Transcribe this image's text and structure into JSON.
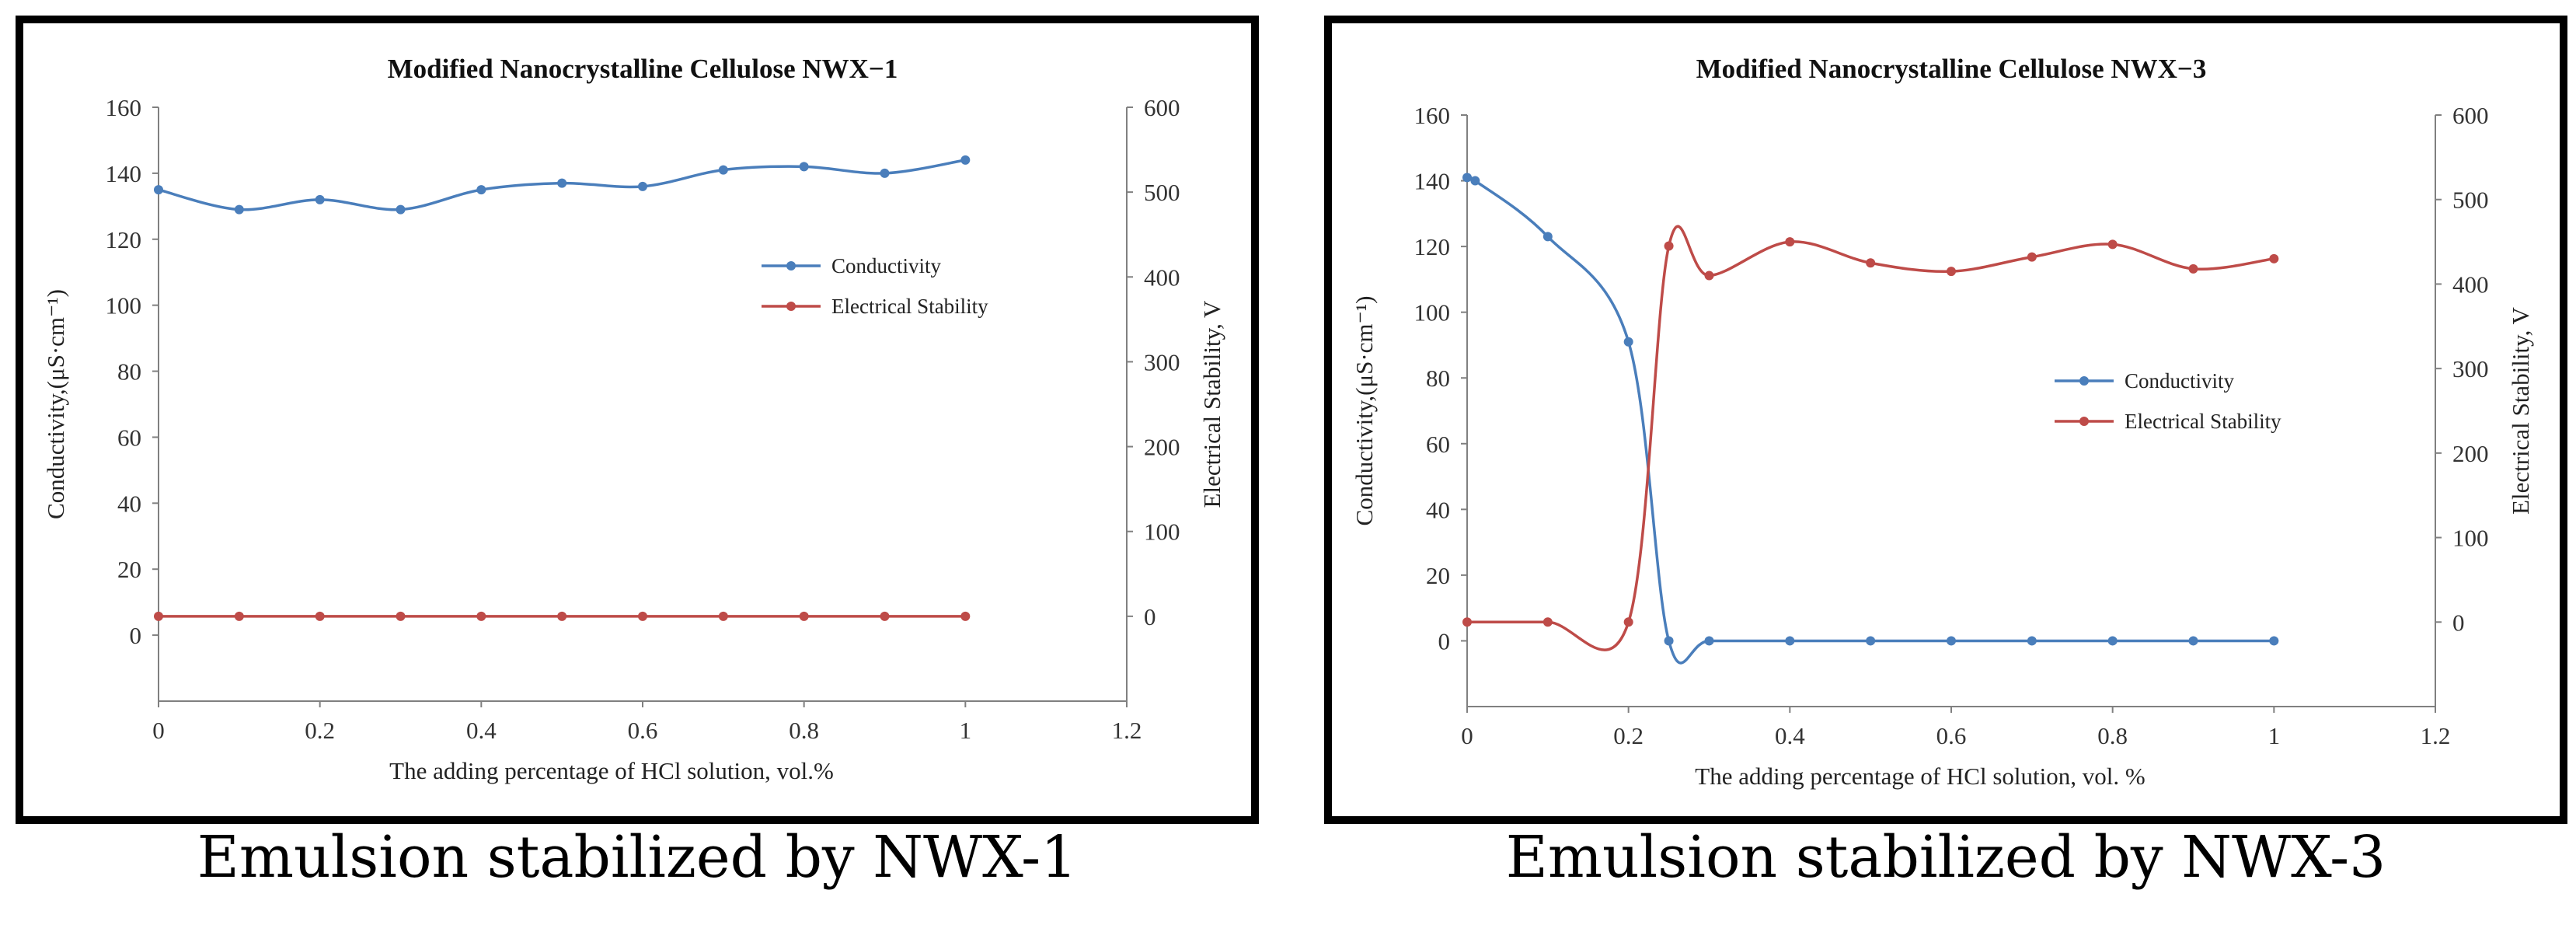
{
  "colors": {
    "conductivity": "#4a7ebb",
    "electrical_stability": "#be4b48",
    "axis": "#808080",
    "frame": "#000000"
  },
  "captions": [
    "Emulsion stabilized by NWX-1",
    "Emulsion stabilized by NWX-3"
  ],
  "chart_data": [
    {
      "type": "line",
      "title": "Modified Nanocrystalline Cellulose NWX−1",
      "xlabel": "The adding percentage of HCl solution,  vol.%",
      "ylabel": "Conductivity,(μS·cm⁻¹)",
      "y2label": "Electrical Stability, V",
      "xlim": [
        0,
        1.2
      ],
      "ylim": [
        -20,
        160
      ],
      "y2lim": [
        -100,
        600
      ],
      "x_ticks": [
        "0",
        "0.2",
        "0.4",
        "0.6",
        "0.8",
        "1",
        "1.2"
      ],
      "y_ticks": [
        "0",
        "20",
        "40",
        "60",
        "80",
        "100",
        "120",
        "140",
        "160"
      ],
      "y2_ticks": [
        "0",
        "100",
        "200",
        "300",
        "400",
        "500",
        "600"
      ],
      "legend_position": "right",
      "grid": false,
      "series": [
        {
          "name": "Conductivity",
          "axis": "left",
          "color_key": "conductivity",
          "x": [
            0,
            0.1,
            0.2,
            0.3,
            0.4,
            0.5,
            0.6,
            0.7,
            0.8,
            0.9,
            1.0
          ],
          "y": [
            135,
            129,
            132,
            129,
            135,
            137,
            136,
            141,
            142,
            140,
            144
          ]
        },
        {
          "name": "Electrical Stability",
          "axis": "right",
          "color_key": "electrical_stability",
          "x": [
            0,
            0.1,
            0.2,
            0.3,
            0.4,
            0.5,
            0.6,
            0.7,
            0.8,
            0.9,
            1.0
          ],
          "y": [
            0,
            0,
            0,
            0,
            0,
            0,
            0,
            0,
            0,
            0,
            0
          ]
        }
      ]
    },
    {
      "type": "line",
      "title": "Modified Nanocrystalline Cellulose NWX−3",
      "xlabel": "The adding percentage of HCl solution, vol. %",
      "ylabel": "Conductivity,(μS·cm⁻¹)",
      "y2label": "Electrical Stability, V",
      "xlim": [
        0,
        1.2
      ],
      "ylim": [
        -20,
        160
      ],
      "y2lim": [
        -100,
        600
      ],
      "x_ticks": [
        "0",
        "0.2",
        "0.4",
        "0.6",
        "0.8",
        "1",
        "1.2"
      ],
      "y_ticks": [
        "0",
        "20",
        "40",
        "60",
        "80",
        "100",
        "120",
        "140",
        "160"
      ],
      "y2_ticks": [
        "0",
        "100",
        "200",
        "300",
        "400",
        "500",
        "600"
      ],
      "legend_position": "center-right",
      "grid": false,
      "series": [
        {
          "name": "Conductivity",
          "axis": "left",
          "color_key": "conductivity",
          "x": [
            0,
            0.01,
            0.1,
            0.2,
            0.25,
            0.3,
            0.4,
            0.5,
            0.6,
            0.7,
            0.8,
            0.9,
            1.0
          ],
          "y": [
            141,
            140,
            123,
            91,
            0,
            0,
            0,
            0,
            0,
            0,
            0,
            0,
            0
          ]
        },
        {
          "name": "Electrical Stability",
          "axis": "right",
          "color_key": "electrical_stability",
          "x": [
            0,
            0.1,
            0.2,
            0.25,
            0.3,
            0.4,
            0.5,
            0.6,
            0.7,
            0.8,
            0.9,
            1.0
          ],
          "y": [
            0,
            0,
            0,
            445,
            410,
            450,
            425,
            415,
            432,
            447,
            418,
            430
          ]
        }
      ]
    }
  ]
}
